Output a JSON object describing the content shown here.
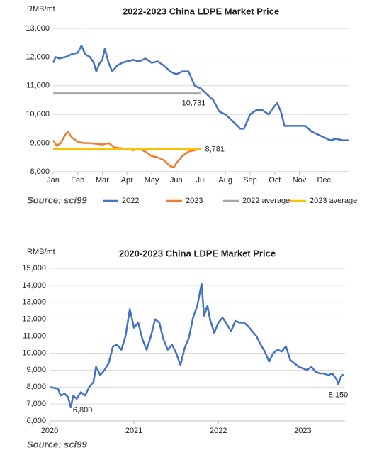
{
  "chart_data": [
    {
      "type": "line",
      "title": "2022-2023  China LDPE Market Price",
      "y_label": "RMB/mt",
      "source": "Source: sci99",
      "xlim": [
        0,
        12
      ],
      "xticks": [
        {
          "value": 0,
          "label": "Jan"
        },
        {
          "value": 1,
          "label": "Feb"
        },
        {
          "value": 2,
          "label": "Mar"
        },
        {
          "value": 3,
          "label": "Apr"
        },
        {
          "value": 4,
          "label": "May"
        },
        {
          "value": 5,
          "label": "Jun"
        },
        {
          "value": 6,
          "label": "Jul"
        },
        {
          "value": 7,
          "label": "Aug"
        },
        {
          "value": 8,
          "label": "Sep"
        },
        {
          "value": 9,
          "label": "Oct"
        },
        {
          "value": 10,
          "label": "Nov"
        },
        {
          "value": 11,
          "label": "Dec"
        }
      ],
      "ylim": [
        8000,
        13000
      ],
      "yticks": [
        {
          "value": 8000,
          "label": "8,000"
        },
        {
          "value": 9000,
          "label": "9,000"
        },
        {
          "value": 10000,
          "label": "10,000"
        },
        {
          "value": 11000,
          "label": "11,000"
        },
        {
          "value": 12000,
          "label": "12,000"
        },
        {
          "value": 13000,
          "label": "13,000"
        }
      ],
      "grid": true,
      "legend": "bottom",
      "series": [
        {
          "name": "2022",
          "color": "#4472c4",
          "x": [
            0,
            0.1,
            0.25,
            0.5,
            0.75,
            1.0,
            1.15,
            1.3,
            1.5,
            1.65,
            1.75,
            1.9,
            2.0,
            2.1,
            2.25,
            2.4,
            2.6,
            2.8,
            3.0,
            3.25,
            3.5,
            3.75,
            4.0,
            4.25,
            4.5,
            4.75,
            5.0,
            5.25,
            5.5,
            5.6,
            5.75,
            6.0,
            6.25,
            6.5,
            6.75,
            7.0,
            7.25,
            7.5,
            7.6,
            7.75,
            8.0,
            8.25,
            8.5,
            8.75,
            9.0,
            9.1,
            9.25,
            9.4,
            9.5,
            10.0,
            10.25,
            10.5,
            10.75,
            11.0,
            11.25,
            11.5,
            11.75,
            12.0
          ],
          "values": [
            11800,
            12000,
            11950,
            12000,
            12100,
            12150,
            12400,
            12100,
            12000,
            11800,
            11500,
            11800,
            11900,
            12300,
            11800,
            11500,
            11700,
            11800,
            11850,
            11900,
            11850,
            11950,
            11800,
            11850,
            11700,
            11500,
            11400,
            11500,
            11500,
            11300,
            11000,
            10900,
            10700,
            10500,
            10100,
            10000,
            9800,
            9600,
            9500,
            9500,
            10000,
            10150,
            10150,
            10000,
            10300,
            10400,
            10100,
            9600,
            9600,
            9600,
            9600,
            9400,
            9300,
            9200,
            9100,
            9150,
            9100,
            9100
          ]
        },
        {
          "name": "2023",
          "color": "#ed7d31",
          "x": [
            0,
            0.15,
            0.3,
            0.5,
            0.6,
            0.75,
            1.0,
            1.25,
            1.5,
            2.0,
            2.25,
            2.5,
            3.0,
            3.25,
            3.5,
            3.75,
            4.0,
            4.25,
            4.5,
            4.75,
            4.9,
            5.0,
            5.25,
            5.5,
            5.75,
            6.0
          ],
          "values": [
            9100,
            8900,
            9000,
            9300,
            9400,
            9200,
            9050,
            9000,
            9000,
            8950,
            9000,
            8850,
            8800,
            8750,
            8800,
            8700,
            8550,
            8500,
            8400,
            8200,
            8150,
            8300,
            8550,
            8700,
            8750,
            8800
          ]
        },
        {
          "name": "2022 average",
          "color": "#a5a5a5",
          "x": [
            0,
            6
          ],
          "value": 10731,
          "value_label": "10,731"
        },
        {
          "name": "2023 average",
          "color": "#ffc000",
          "x": [
            0,
            6
          ],
          "value": 8781,
          "value_label": "8,781"
        }
      ]
    },
    {
      "type": "line",
      "title": "2020-2023  China LDPE Market Price",
      "y_label": "RMB/mt",
      "source": "Source: sci99",
      "xlim": [
        2020,
        2023.5
      ],
      "xticks": [
        2020,
        2021,
        2022,
        2023
      ],
      "ylim": [
        6000,
        15000
      ],
      "yticks": [
        {
          "value": 6000,
          "label": "6,000"
        },
        {
          "value": 7000,
          "label": "7,000"
        },
        {
          "value": 8000,
          "label": "8,000"
        },
        {
          "value": 9000,
          "label": "9,000"
        },
        {
          "value": 10000,
          "label": "10,000"
        },
        {
          "value": 11000,
          "label": "11,000"
        },
        {
          "value": 12000,
          "label": "12,000"
        },
        {
          "value": 13000,
          "label": "13,000"
        },
        {
          "value": 14000,
          "label": "14,000"
        },
        {
          "value": 15000,
          "label": "15,000"
        }
      ],
      "grid": true,
      "series": [
        {
          "color": "#4472c4",
          "x": [
            2020.0,
            2020.05,
            2020.1,
            2020.13,
            2020.18,
            2020.22,
            2020.25,
            2020.28,
            2020.32,
            2020.37,
            2020.42,
            2020.47,
            2020.52,
            2020.55,
            2020.6,
            2020.65,
            2020.7,
            2020.75,
            2020.8,
            2020.85,
            2020.9,
            2020.95,
            2021.0,
            2021.05,
            2021.1,
            2021.15,
            2021.2,
            2021.25,
            2021.3,
            2021.35,
            2021.4,
            2021.45,
            2021.5,
            2021.55,
            2021.6,
            2021.65,
            2021.7,
            2021.75,
            2021.8,
            2021.83,
            2021.87,
            2021.9,
            2021.95,
            2022.0,
            2022.05,
            2022.1,
            2022.15,
            2022.2,
            2022.25,
            2022.3,
            2022.35,
            2022.4,
            2022.45,
            2022.5,
            2022.55,
            2022.6,
            2022.65,
            2022.7,
            2022.75,
            2022.8,
            2022.85,
            2022.9,
            2022.95,
            2023.0,
            2023.05,
            2023.1,
            2023.15,
            2023.2,
            2023.25,
            2023.3,
            2023.35,
            2023.4,
            2023.42,
            2023.45,
            2023.48
          ],
          "values": [
            8000,
            7950,
            7900,
            7500,
            7600,
            7400,
            6800,
            7500,
            7300,
            7700,
            7500,
            8000,
            8300,
            9200,
            8700,
            9000,
            9400,
            10400,
            10500,
            10200,
            11000,
            12600,
            11500,
            11800,
            10800,
            10200,
            11000,
            12000,
            11800,
            10800,
            10200,
            10500,
            10000,
            9300,
            10300,
            10900,
            12100,
            12800,
            14100,
            12200,
            12800,
            12000,
            11200,
            11800,
            12100,
            11700,
            11300,
            11900,
            11800,
            11800,
            11600,
            11300,
            11000,
            10500,
            10100,
            9500,
            10000,
            10200,
            10100,
            10400,
            9600,
            9400,
            9200,
            9100,
            9000,
            9200,
            8900,
            8800,
            8800,
            8700,
            8800,
            8450,
            8150,
            8600,
            8750
          ]
        }
      ],
      "annotations": [
        {
          "x": 2020.25,
          "value": 6800,
          "label": "6,800"
        },
        {
          "x": 2023.42,
          "value": 8150,
          "label": "8,150"
        }
      ]
    }
  ]
}
